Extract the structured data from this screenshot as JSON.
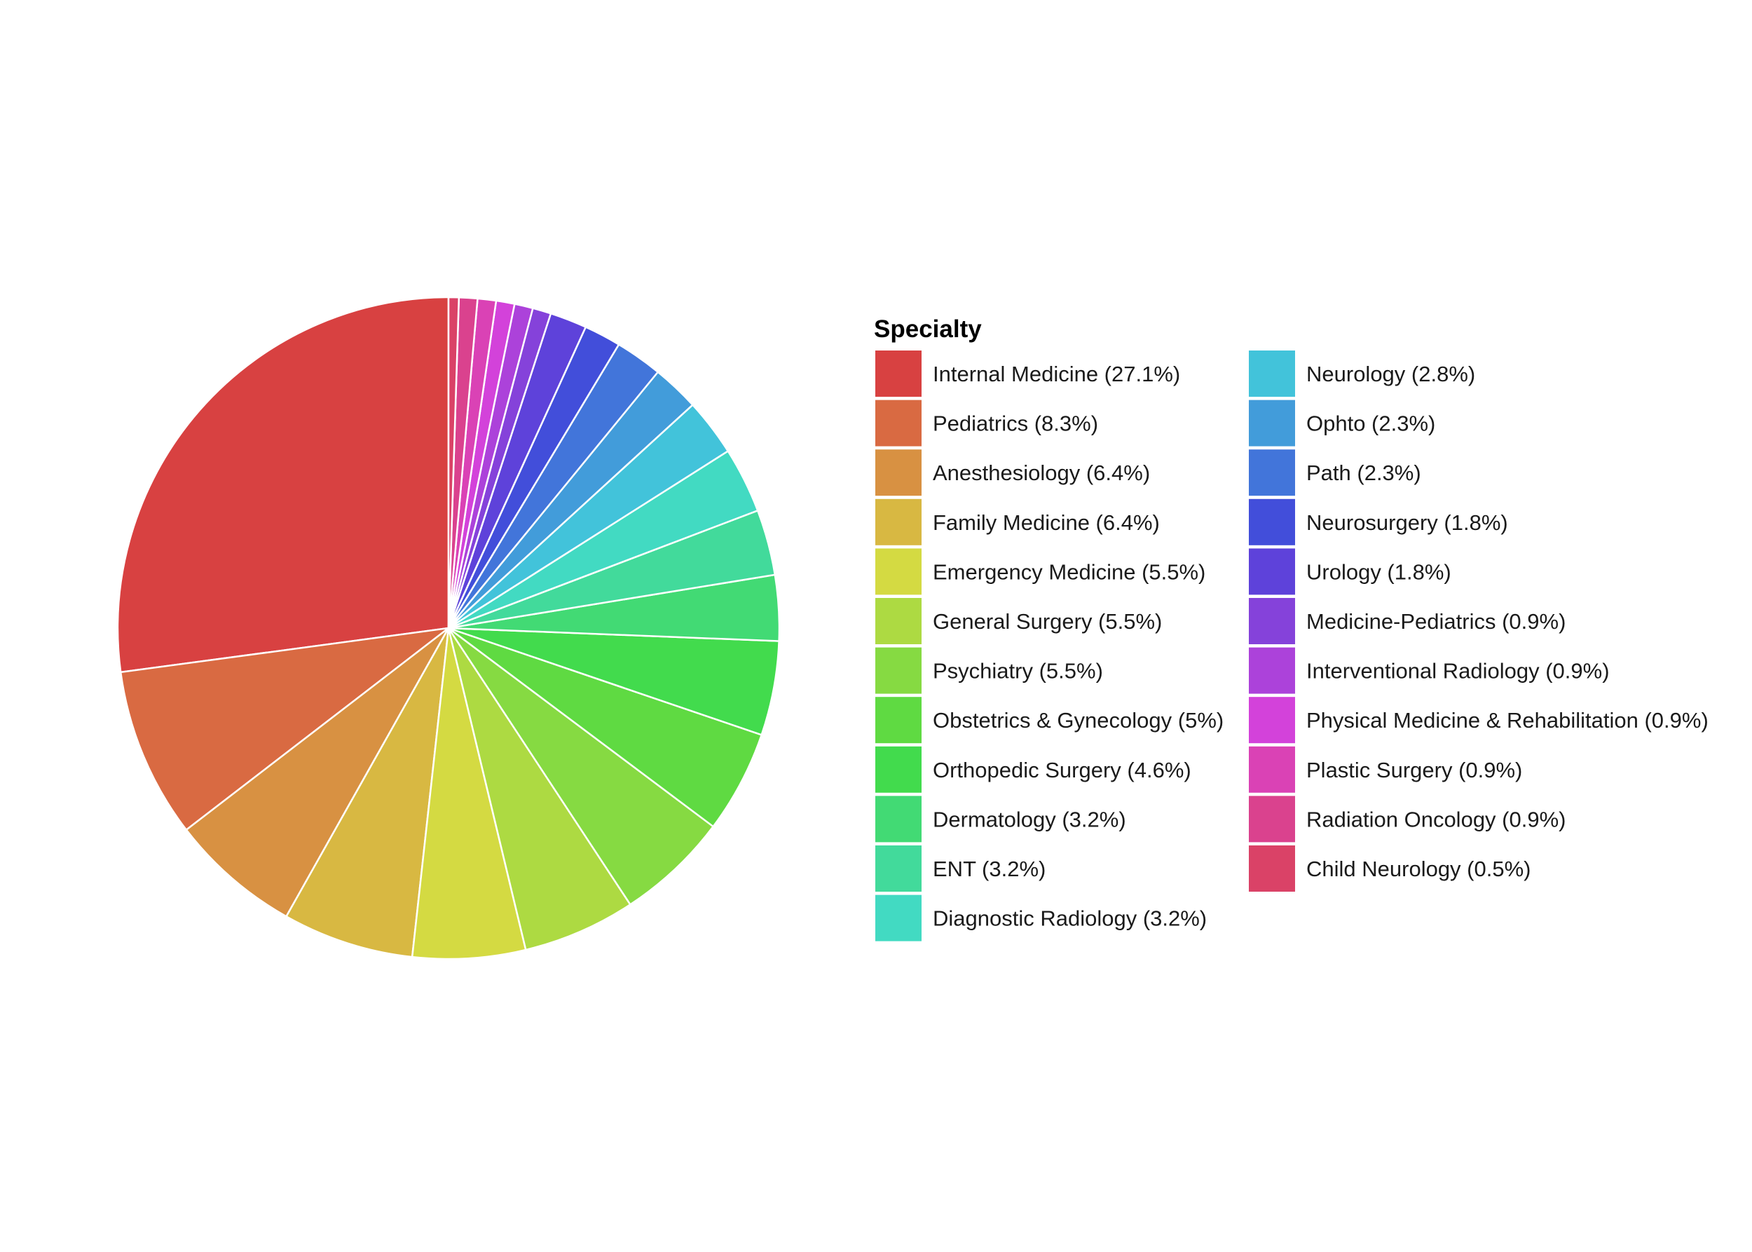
{
  "chart_data": {
    "type": "pie",
    "legend_title": "Specialty",
    "legend_position": "right",
    "start": "top",
    "direction": "counterclockwise",
    "slices": [
      {
        "label": "Internal Medicine (27.1%)",
        "value": 27.1,
        "color": "#D84141"
      },
      {
        "label": "Pediatrics (8.3%)",
        "value": 8.3,
        "color": "#D96A42"
      },
      {
        "label": "Anesthesiology (6.4%)",
        "value": 6.4,
        "color": "#D89142"
      },
      {
        "label": "Family Medicine (6.4%)",
        "value": 6.4,
        "color": "#D8B842"
      },
      {
        "label": "Emergency Medicine (5.5%)",
        "value": 5.5,
        "color": "#D4DA42"
      },
      {
        "label": "General Surgery (5.5%)",
        "value": 5.5,
        "color": "#ADDA42"
      },
      {
        "label": "Psychiatry (5.5%)",
        "value": 5.5,
        "color": "#86DA42"
      },
      {
        "label": "Obstetrics & Gynecology (5%)",
        "value": 5.0,
        "color": "#5FDA42"
      },
      {
        "label": "Orthopedic Surgery (4.6%)",
        "value": 4.6,
        "color": "#42DB4D"
      },
      {
        "label": "Dermatology (3.2%)",
        "value": 3.2,
        "color": "#42DA74"
      },
      {
        "label": "ENT (3.2%)",
        "value": 3.2,
        "color": "#42DA9B"
      },
      {
        "label": "Diagnostic Radiology (3.2%)",
        "value": 3.2,
        "color": "#42DAC2"
      },
      {
        "label": "Neurology (2.8%)",
        "value": 2.8,
        "color": "#42C3DA"
      },
      {
        "label": "Ophto (2.3%)",
        "value": 2.3,
        "color": "#429CDA"
      },
      {
        "label": "Path (2.3%)",
        "value": 2.3,
        "color": "#4275DA"
      },
      {
        "label": "Neurosurgery (1.8%)",
        "value": 1.8,
        "color": "#424EDA"
      },
      {
        "label": "Urology (1.8%)",
        "value": 1.8,
        "color": "#5E42DA"
      },
      {
        "label": "Medicine-Pediatrics (0.9%)",
        "value": 0.9,
        "color": "#8542DA"
      },
      {
        "label": "Interventional Radiology (0.9%)",
        "value": 0.9,
        "color": "#AC42DA"
      },
      {
        "label": "Physical Medicine & Rehabilitation (0.9%)",
        "value": 0.9,
        "color": "#D342DA"
      },
      {
        "label": "Plastic Surgery (0.9%)",
        "value": 0.9,
        "color": "#DA42B5"
      },
      {
        "label": "Radiation Oncology (0.9%)",
        "value": 0.9,
        "color": "#DA428E"
      },
      {
        "label": "Child Neurology (0.5%)",
        "value": 0.5,
        "color": "#DA4267"
      }
    ]
  }
}
